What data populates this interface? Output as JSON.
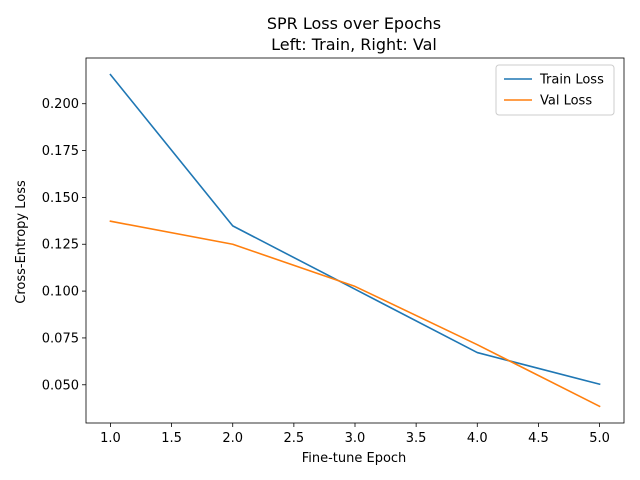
{
  "chart_data": {
    "type": "line",
    "title": "SPR Loss over Epochs",
    "subtitle": "Left: Train, Right: Val",
    "xlabel": "Fine-tune Epoch",
    "ylabel": "Cross-Entropy Loss",
    "x": [
      1,
      2,
      3,
      4,
      5
    ],
    "series": [
      {
        "name": "Train Loss",
        "color": "#1f77b4",
        "values": [
          0.2155,
          0.1348,
          0.101,
          0.0672,
          0.0503
        ]
      },
      {
        "name": "Val Loss",
        "color": "#ff7f0e",
        "values": [
          0.1373,
          0.125,
          0.1025,
          0.0714,
          0.0385
        ]
      }
    ],
    "xlim": [
      0.8,
      5.2
    ],
    "ylim": [
      0.0296,
      0.2244
    ],
    "xticks": [
      1.0,
      1.5,
      2.0,
      2.5,
      3.0,
      3.5,
      4.0,
      4.5,
      5.0
    ],
    "xtick_labels": [
      "1.0",
      "1.5",
      "2.0",
      "2.5",
      "3.0",
      "3.5",
      "4.0",
      "4.5",
      "5.0"
    ],
    "yticks": [
      0.05,
      0.075,
      0.1,
      0.125,
      0.15,
      0.175,
      0.2
    ],
    "ytick_labels": [
      "0.050",
      "0.075",
      "0.100",
      "0.125",
      "0.150",
      "0.175",
      "0.200"
    ],
    "grid": false,
    "legend": "top-right"
  }
}
